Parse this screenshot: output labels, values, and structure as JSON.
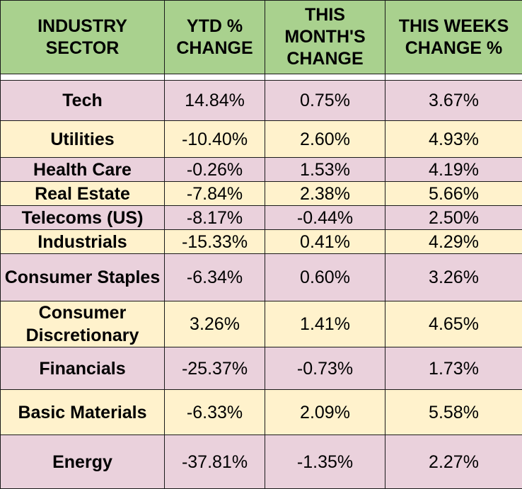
{
  "chart_data": {
    "type": "table",
    "columns": [
      "INDUSTRY SECTOR",
      "YTD % CHANGE",
      "THIS MONTH'S CHANGE",
      "THIS WEEKS CHANGE %"
    ],
    "rows": [
      {
        "sector": "Tech",
        "ytd": "14.84%",
        "month": "0.75%",
        "week": "3.67%"
      },
      {
        "sector": "Utilities",
        "ytd": "-10.40%",
        "month": "2.60%",
        "week": "4.93%"
      },
      {
        "sector": "Health Care",
        "ytd": "-0.26%",
        "month": "1.53%",
        "week": "4.19%"
      },
      {
        "sector": "Real Estate",
        "ytd": "-7.84%",
        "month": "2.38%",
        "week": "5.66%"
      },
      {
        "sector": "Telecoms (US)",
        "ytd": "-8.17%",
        "month": "-0.44%",
        "week": "2.50%"
      },
      {
        "sector": "Industrials",
        "ytd": "-15.33%",
        "month": "0.41%",
        "week": "4.29%"
      },
      {
        "sector": "Consumer Staples",
        "ytd": "-6.34%",
        "month": "0.60%",
        "week": "3.26%"
      },
      {
        "sector": "Consumer Discretionary",
        "ytd": "3.26%",
        "month": "1.41%",
        "week": "4.65%"
      },
      {
        "sector": "Financials",
        "ytd": "-25.37%",
        "month": "-0.73%",
        "week": "1.73%"
      },
      {
        "sector": "Basic Materials",
        "ytd": "-6.33%",
        "month": "2.09%",
        "week": "5.58%"
      },
      {
        "sector": "Energy",
        "ytd": "-37.81%",
        "month": "-1.35%",
        "week": "2.27%"
      }
    ]
  },
  "colors": {
    "header_bg": "#a9d18e",
    "row_pink": "#ead1dc",
    "row_yellow": "#fff2cc",
    "border": "#1a1a1a"
  }
}
